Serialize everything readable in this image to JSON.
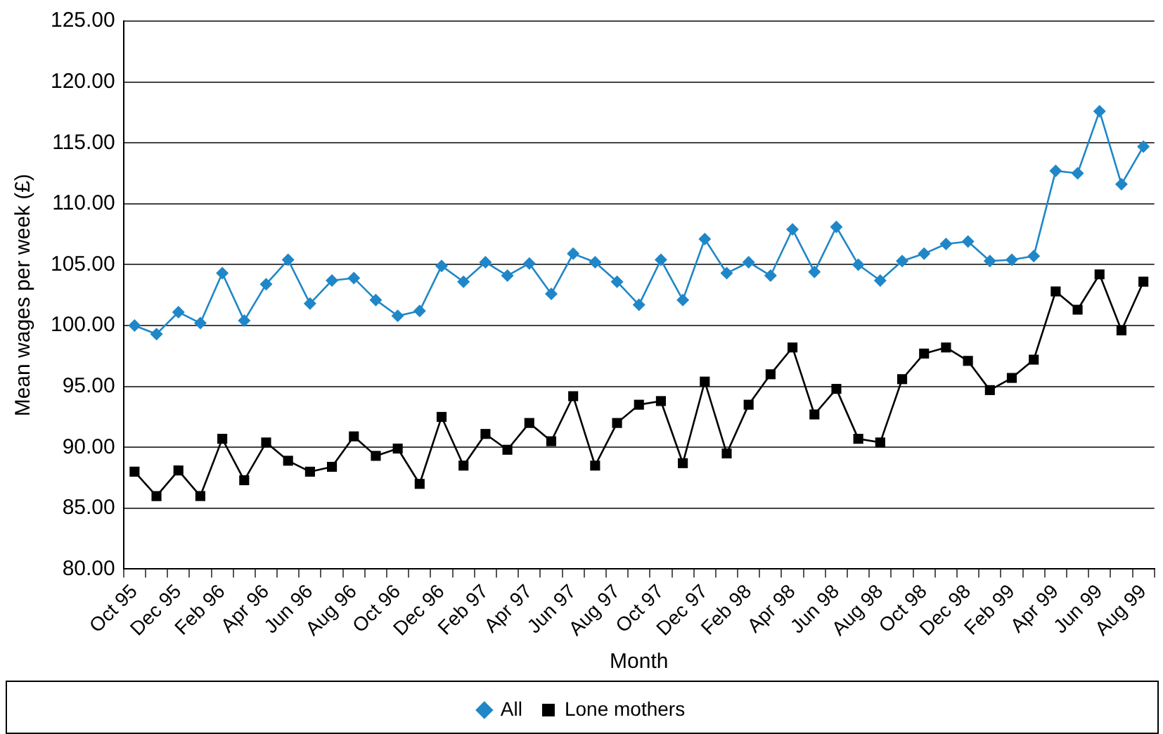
{
  "chart_data": {
    "type": "line",
    "xlabel": "Month",
    "ylabel": "Mean wages per week (£)",
    "categories": [
      "Oct 95",
      null,
      "Dec 95",
      null,
      "Feb 96",
      null,
      "Apr 96",
      null,
      "Jun 96",
      null,
      "Aug 96",
      null,
      "Oct 96",
      null,
      "Dec 96",
      null,
      "Feb 97",
      null,
      "Apr 97",
      null,
      "Jun 97",
      null,
      "Aug 97",
      null,
      "Oct 97",
      null,
      "Dec 97",
      null,
      "Feb 98",
      null,
      "Apr 98",
      null,
      "Jun 98",
      null,
      "Aug 98",
      null,
      "Oct 98",
      null,
      "Dec 98",
      null,
      "Feb 99",
      null,
      "Apr 99",
      null,
      "Jun 99",
      null,
      "Aug 99"
    ],
    "series": [
      {
        "name": "All",
        "color": "#1f87c8",
        "marker": "diamond",
        "values": [
          100.0,
          99.3,
          101.1,
          100.2,
          104.3,
          100.4,
          103.4,
          105.4,
          101.8,
          103.7,
          103.9,
          102.1,
          100.8,
          101.2,
          104.9,
          103.6,
          105.2,
          104.1,
          105.1,
          102.6,
          105.9,
          105.2,
          103.6,
          101.7,
          105.4,
          102.1,
          107.1,
          104.3,
          105.2,
          104.1,
          107.9,
          104.4,
          108.1,
          105.0,
          103.7,
          105.3,
          105.9,
          106.7,
          106.9,
          105.3,
          105.4,
          105.7,
          112.7,
          112.5,
          117.6,
          111.6,
          114.7
        ]
      },
      {
        "name": "Lone mothers",
        "color": "#000000",
        "marker": "square",
        "values": [
          88.0,
          86.0,
          88.1,
          86.0,
          90.7,
          87.3,
          90.4,
          88.9,
          88.0,
          88.4,
          90.9,
          89.3,
          89.9,
          87.0,
          92.5,
          88.5,
          91.1,
          89.8,
          92.0,
          90.5,
          94.2,
          88.5,
          92.0,
          93.5,
          93.8,
          88.7,
          95.4,
          89.5,
          93.5,
          96.0,
          98.2,
          92.7,
          94.8,
          90.7,
          90.4,
          95.6,
          97.7,
          98.2,
          97.1,
          94.7,
          95.7,
          97.2,
          102.8,
          101.3,
          104.2,
          99.6,
          103.6
        ]
      }
    ],
    "ylim": [
      80,
      125
    ],
    "yticks": [
      {
        "value": 80,
        "label": "80.00"
      },
      {
        "value": 85,
        "label": "85.00"
      },
      {
        "value": 90,
        "label": "90.00"
      },
      {
        "value": 95,
        "label": "95.00"
      },
      {
        "value": 100,
        "label": "100.00"
      },
      {
        "value": 105,
        "label": "105.00"
      },
      {
        "value": 110,
        "label": "110.00"
      },
      {
        "value": 115,
        "label": "115.00"
      },
      {
        "value": 120,
        "label": "120.00"
      },
      {
        "value": 125,
        "label": "125.00"
      }
    ],
    "grid": "y",
    "legend": "bottom",
    "line_style": "solid"
  }
}
